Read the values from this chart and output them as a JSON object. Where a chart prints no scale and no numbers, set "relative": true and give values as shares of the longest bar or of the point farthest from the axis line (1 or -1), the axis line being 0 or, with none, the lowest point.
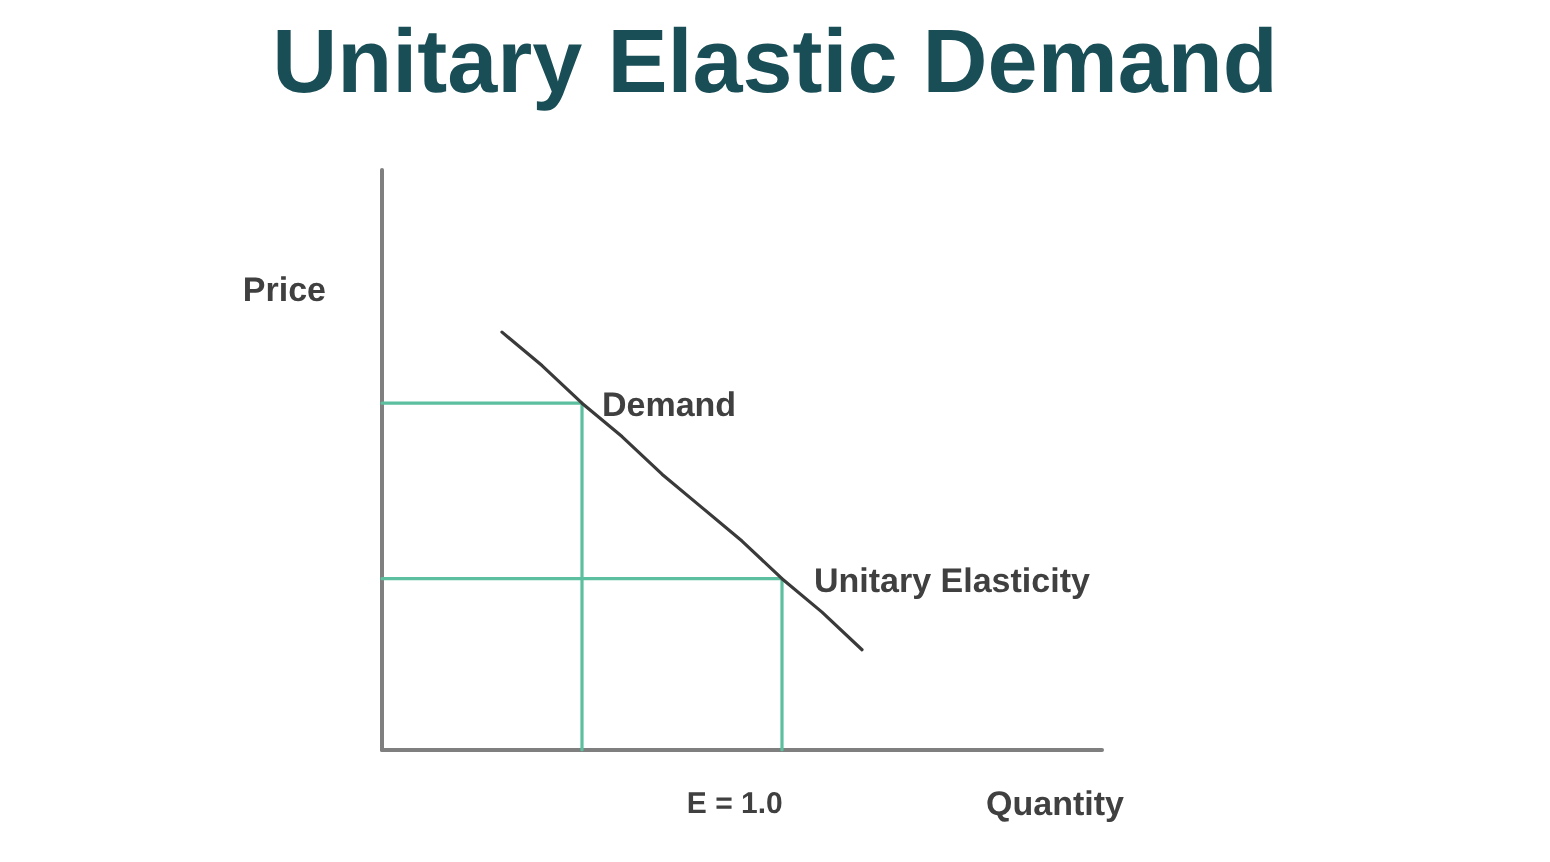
{
  "chart_data": {
    "type": "line",
    "title": "Unitary Elastic Demand",
    "xlabel": "Quantity",
    "ylabel": "Price",
    "relative": true,
    "categories": [
      null,
      null,
      null,
      null,
      null,
      null,
      null,
      null,
      null,
      null,
      null,
      null,
      null,
      null,
      null,
      null,
      null,
      null,
      null
    ],
    "series": [
      {
        "name": "Demand",
        "color": "#3a3a3a",
        "values": [
          null,
          null,
          null,
          1,
          0.92,
          0.83,
          0.75,
          0.66,
          0.58,
          0.5,
          0.41,
          0.33,
          0.24,
          null,
          null,
          null,
          null,
          null,
          null
        ]
      },
      {
        "type": "step",
        "color": "#5cbf9f",
        "values": [
          0.83,
          0.83,
          0.83,
          0.83,
          0.83,
          0,
          null,
          null,
          null,
          null,
          null,
          null,
          null,
          null,
          null,
          null,
          null,
          null,
          null
        ]
      },
      {
        "type": "step",
        "color": "#5cbf9f",
        "values": [
          0.41,
          0.41,
          0.41,
          0.41,
          0.41,
          0.41,
          0.41,
          0.41,
          0.41,
          0.41,
          0,
          null,
          null,
          null,
          null,
          null,
          null,
          null,
          null
        ]
      }
    ],
    "annotations": [
      "Unitary Elasticity",
      "E = 1.0"
    ],
    "marker": "none"
  }
}
